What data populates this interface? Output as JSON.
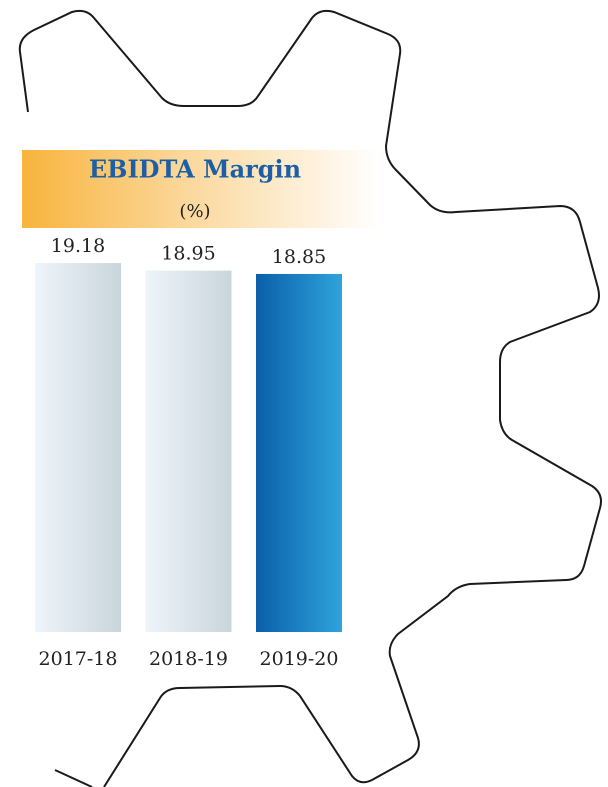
{
  "chart_data": {
    "type": "bar",
    "title": "EBIDTA Margin",
    "subtitle": "(%)",
    "categories": [
      "2017-18",
      "2018-19",
      "2019-20"
    ],
    "values": [
      19.18,
      18.95,
      18.85
    ],
    "colors": [
      [
        "#eef5fb",
        "#c9d5dc"
      ],
      [
        "#eef5fb",
        "#c9d5dc"
      ],
      [
        "#0a5fa8",
        "#2fa3dc"
      ]
    ],
    "ylim": [
      8,
      20
    ]
  }
}
